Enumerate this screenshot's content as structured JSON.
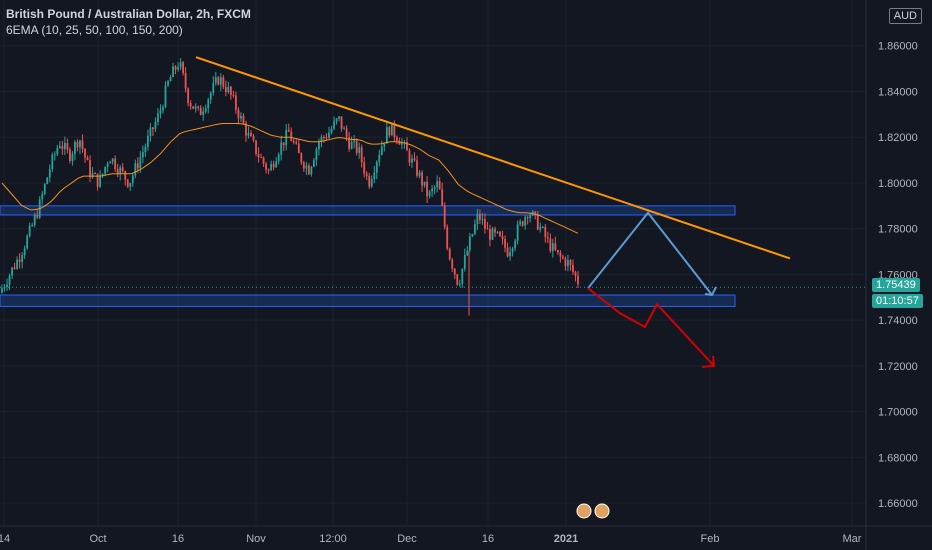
{
  "header": {
    "title": "British Pound / Australian Dollar, 2h, FXCM",
    "indicator": "6EMA (10, 25, 50, 100, 150, 200)",
    "currency": "AUD"
  },
  "price_badge": {
    "value": "1.75439",
    "countdown": "01:10:57"
  },
  "colors": {
    "background": "#131722",
    "up": "#26a69a",
    "down": "#ef5350",
    "ema": "#f7931a",
    "trendline": "#ff9800",
    "zone_fill": "#1a3c7a",
    "zone_border": "#2962ff",
    "bull_path": "#5b9bd5",
    "bear_path": "#d50000"
  },
  "chart_data": {
    "type": "candlestick",
    "symbol": "GBPAUD",
    "timeframe": "2h",
    "ylim": [
      1.65,
      1.88
    ],
    "y_ticks": [
      "1.66000",
      "1.68000",
      "1.70000",
      "1.72000",
      "1.74000",
      "1.76000",
      "1.78000",
      "1.80000",
      "1.82000",
      "1.84000",
      "1.86000"
    ],
    "x_ticks": [
      "14",
      "Oct",
      "16",
      "Nov",
      "12:00",
      "Dec",
      "16",
      "2021",
      "Feb",
      "Mar"
    ],
    "x_tick_positions_data": [
      "Sep 14",
      "Oct 1",
      "Oct 16",
      "Nov 1",
      "Nov 12:00",
      "Dec 1",
      "Dec 16",
      "Jan 1 2021",
      "Feb 1",
      "Mar 1"
    ],
    "price_path": [
      1.752,
      1.76,
      1.768,
      1.778,
      1.79,
      1.806,
      1.818,
      1.812,
      1.82,
      1.805,
      1.8,
      1.812,
      1.806,
      1.8,
      1.81,
      1.82,
      1.83,
      1.845,
      1.853,
      1.836,
      1.83,
      1.838,
      1.846,
      1.84,
      1.83,
      1.82,
      1.812,
      1.805,
      1.815,
      1.822,
      1.812,
      1.806,
      1.818,
      1.822,
      1.828,
      1.818,
      1.814,
      1.8,
      1.813,
      1.824,
      1.82,
      1.812,
      1.804,
      1.794,
      1.8,
      1.77,
      1.756,
      1.772,
      1.786,
      1.778,
      1.776,
      1.77,
      1.78,
      1.788,
      1.782,
      1.774,
      1.768,
      1.765,
      1.757
    ],
    "ema_path": [
      1.8,
      1.795,
      1.79,
      1.788,
      1.789,
      1.792,
      1.797,
      1.8,
      1.803,
      1.803,
      1.803,
      1.804,
      1.804,
      1.804,
      1.806,
      1.809,
      1.813,
      1.818,
      1.822,
      1.823,
      1.824,
      1.825,
      1.826,
      1.826,
      1.826,
      1.825,
      1.823,
      1.821,
      1.82,
      1.82,
      1.819,
      1.818,
      1.818,
      1.819,
      1.82,
      1.819,
      1.819,
      1.817,
      1.817,
      1.818,
      1.818,
      1.817,
      1.815,
      1.812,
      1.81,
      1.805,
      1.799,
      1.796,
      1.794,
      1.792,
      1.79,
      1.788,
      1.787,
      1.787,
      1.786,
      1.784,
      1.782,
      1.78,
      1.778
    ],
    "resistance_line": {
      "from": [
        1.855
      ],
      "to": [
        1.767
      ]
    },
    "zones": [
      {
        "name": "upper-zone",
        "low": 1.786,
        "high": 1.79
      },
      {
        "name": "lower-zone",
        "low": 1.746,
        "high": 1.751
      }
    ],
    "projection_bullish": [
      1.754,
      1.787,
      1.751
    ],
    "projection_bearish": [
      1.754,
      1.743,
      1.737,
      1.747,
      1.72
    ],
    "last_price": 1.75439,
    "grid": true
  }
}
